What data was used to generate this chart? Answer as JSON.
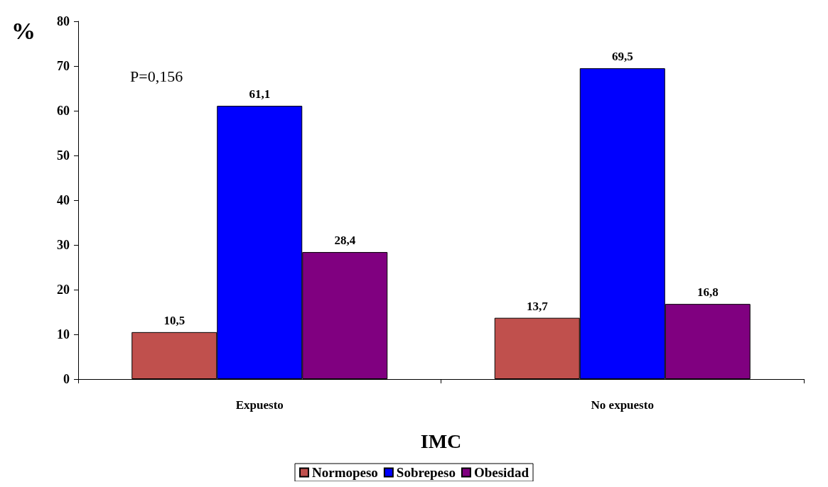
{
  "chart_data": {
    "type": "bar",
    "xlabel": "IMC",
    "ylabel": "%",
    "categories": [
      "Expuesto",
      "No expuesto"
    ],
    "series": [
      {
        "name": "Normopeso",
        "color": "#c0504d",
        "values": [
          10.5,
          13.7
        ],
        "value_labels": [
          "10,5",
          "13,7"
        ]
      },
      {
        "name": "Sobrepeso",
        "color": "#0000ff",
        "values": [
          61.1,
          69.5
        ],
        "value_labels": [
          "61,1",
          "69,5"
        ]
      },
      {
        "name": "Obesidad",
        "color": "#800080",
        "values": [
          28.4,
          16.8
        ],
        "value_labels": [
          "28,4",
          "16,8"
        ]
      }
    ],
    "ylim": [
      0,
      80
    ],
    "yticks": [
      0,
      10,
      20,
      30,
      40,
      50,
      60,
      70,
      80
    ],
    "grid": false,
    "legend": "bottom",
    "annotations": [
      "P=0,156"
    ]
  }
}
